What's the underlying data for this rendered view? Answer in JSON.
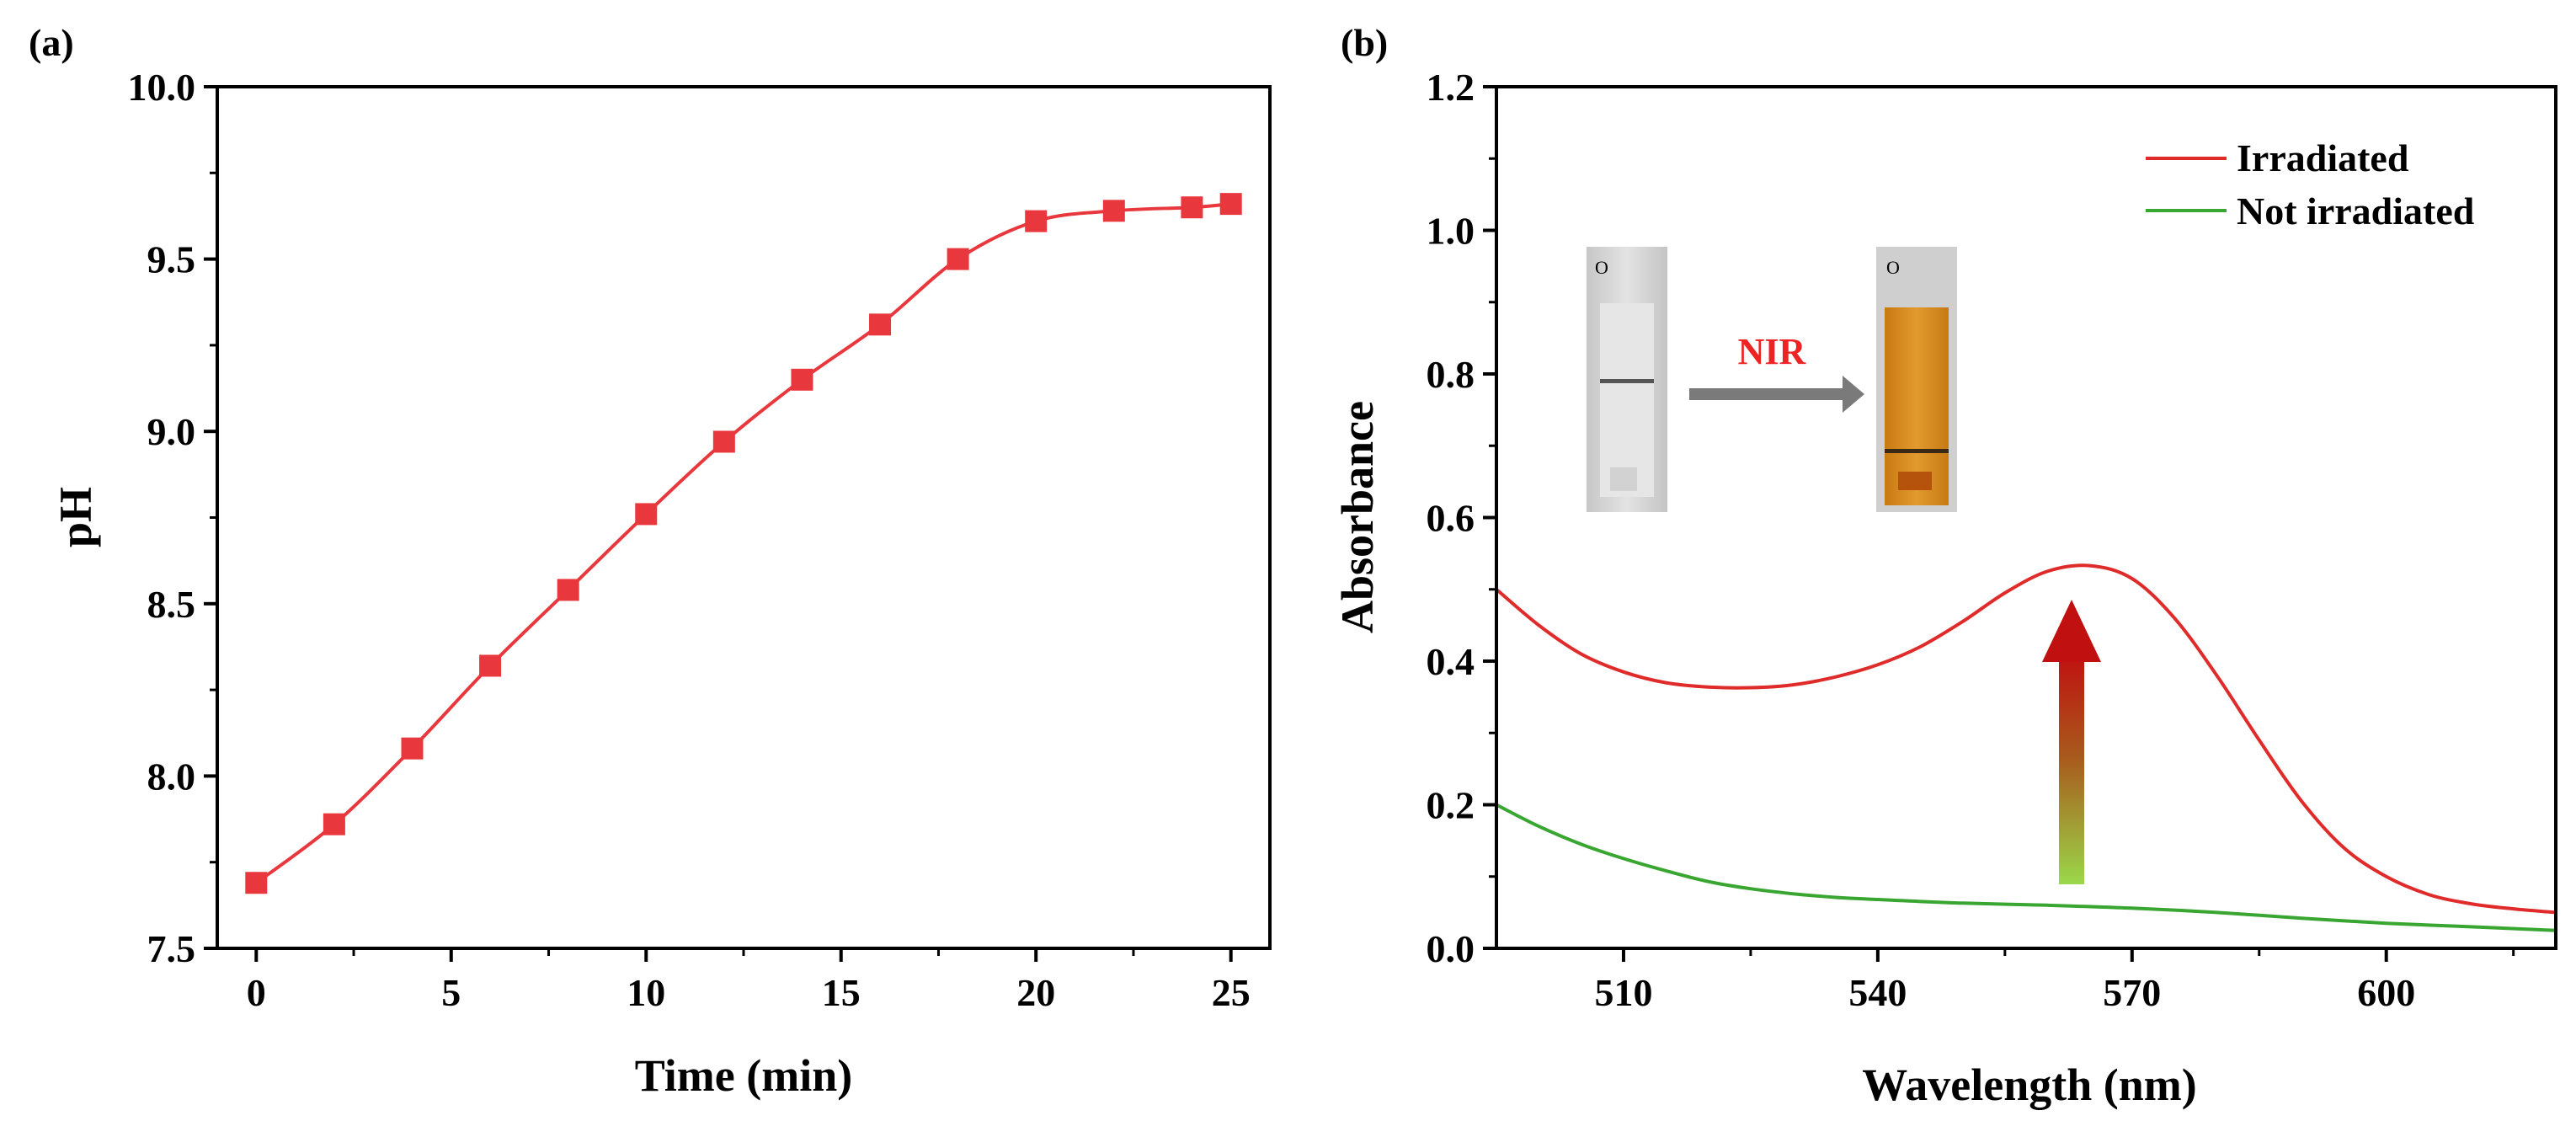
{
  "panels": {
    "a": "(a)",
    "b": "(b)"
  },
  "chart_data": [
    {
      "type": "line",
      "panel": "(a)",
      "xlabel": "Time (min)",
      "ylabel": "pH",
      "xlim": [
        -1,
        26
      ],
      "ylim": [
        7.5,
        10.0
      ],
      "xticks": [
        0,
        5,
        10,
        15,
        20,
        25
      ],
      "yticks": [
        7.5,
        8.0,
        8.5,
        9.0,
        9.5,
        10.0
      ],
      "ytick_labels": [
        "7.5",
        "8.0",
        "8.5",
        "9.0",
        "9.5",
        "10.0"
      ],
      "marker": "square",
      "color": "#e8383d",
      "series": [
        {
          "name": "pH",
          "x": [
            0,
            2,
            4,
            6,
            8,
            10,
            12,
            14,
            16,
            18,
            20,
            22,
            24,
            25
          ],
          "y": [
            7.69,
            7.86,
            8.08,
            8.32,
            8.54,
            8.76,
            8.97,
            9.15,
            9.31,
            9.5,
            9.61,
            9.64,
            9.65,
            9.66
          ]
        }
      ]
    },
    {
      "type": "line",
      "panel": "(b)",
      "xlabel": "Wavelength (nm)",
      "ylabel": "Absorbance",
      "xlim": [
        495,
        620
      ],
      "ylim": [
        0.0,
        1.2
      ],
      "xticks": [
        510,
        540,
        570,
        600
      ],
      "yticks": [
        0.0,
        0.2,
        0.4,
        0.6,
        0.8,
        1.0,
        1.2
      ],
      "ytick_labels": [
        "0.0",
        "0.2",
        "0.4",
        "0.6",
        "0.8",
        "1.0",
        "1.2"
      ],
      "legend_position": "top-right",
      "series": [
        {
          "name": "Irradiated",
          "color": "#e02b2b",
          "x": [
            495,
            500,
            505,
            510,
            515,
            520,
            525,
            530,
            535,
            540,
            545,
            550,
            555,
            560,
            565,
            570,
            575,
            580,
            585,
            590,
            595,
            600,
            605,
            610,
            615,
            620
          ],
          "y": [
            0.5,
            0.45,
            0.41,
            0.385,
            0.37,
            0.364,
            0.363,
            0.367,
            0.378,
            0.395,
            0.42,
            0.455,
            0.495,
            0.525,
            0.533,
            0.515,
            0.46,
            0.38,
            0.29,
            0.205,
            0.14,
            0.1,
            0.075,
            0.062,
            0.055,
            0.05
          ]
        },
        {
          "name": "Not irradiated",
          "color": "#3aa632",
          "x": [
            495,
            500,
            505,
            510,
            515,
            520,
            525,
            530,
            535,
            540,
            550,
            560,
            570,
            580,
            590,
            600,
            610,
            620
          ],
          "y": [
            0.2,
            0.17,
            0.145,
            0.125,
            0.108,
            0.093,
            0.083,
            0.076,
            0.071,
            0.068,
            0.063,
            0.06,
            0.056,
            0.05,
            0.042,
            0.035,
            0.03,
            0.025
          ]
        }
      ],
      "annotations": [
        {
          "text": "NIR",
          "kind": "arrow-label"
        },
        {
          "text": "",
          "kind": "gradient-arrow",
          "at_wavelength": 565,
          "from": 0.1,
          "to": 0.49
        }
      ],
      "inset": {
        "before_label": "O",
        "after_label": "O",
        "before_color": "#d6d6d6",
        "after_color": "#d98e22"
      }
    }
  ]
}
